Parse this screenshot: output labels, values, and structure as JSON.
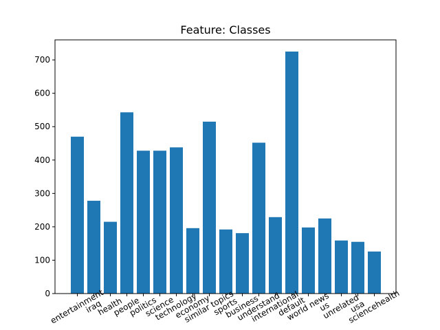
{
  "chart_data": {
    "type": "bar",
    "title": "Feature: Classes",
    "xlabel": "",
    "ylabel": "",
    "categories": [
      "entertainment",
      "iraq",
      "health",
      "people",
      "politics",
      "science",
      "technology",
      "economy",
      "similar topics",
      "sports",
      "business",
      "understand",
      "international",
      "default",
      "world news",
      "us",
      "unrelated",
      "usa",
      "sciencehealth"
    ],
    "values": [
      470,
      278,
      215,
      543,
      428,
      428,
      438,
      196,
      515,
      192,
      181,
      452,
      229,
      725,
      198,
      225,
      159,
      155,
      126
    ],
    "ylim": [
      0,
      760
    ],
    "yticks": [
      0,
      100,
      200,
      300,
      400,
      500,
      600,
      700
    ],
    "xtick_rotation_deg": -30,
    "bar_color": "#1f77b4",
    "grid": false,
    "legend": "none"
  }
}
